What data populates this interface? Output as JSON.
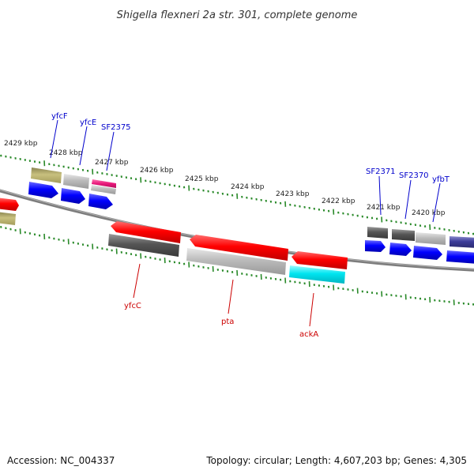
{
  "title": "Shigella flexneri 2a str. 301, complete genome",
  "footer": {
    "accession": "Accession: NC_004337",
    "summary": "Topology: circular; Length: 4,607,203 bp; Genes: 4,305"
  },
  "kbp_labels": [
    "2429 kbp",
    "2428 kbp",
    "2427 kbp",
    "2426 kbp",
    "2425 kbp",
    "2424 kbp",
    "2423 kbp",
    "2422 kbp",
    "2421 kbp",
    "2420 kbp"
  ],
  "upper_gene_labels": [
    "yfcF",
    "yfcE",
    "SF2375",
    "SF2371",
    "SF2370",
    "yfbT"
  ],
  "lower_gene_labels": [
    "yfcC",
    "pta",
    "ackA"
  ],
  "colors": {
    "upper_label": "#0000cc",
    "lower_label": "#cc0000",
    "tick": "#2a8a2a",
    "backbone": "#777777",
    "red": "#ff0000",
    "blue": "#0000ff",
    "grey_dark": "#555555",
    "grey_light": "#bbbbbb",
    "olive": "#b5ad6a",
    "magenta": "#e8187a",
    "cyan": "#00e5f0",
    "purple": "#3c3c99"
  }
}
